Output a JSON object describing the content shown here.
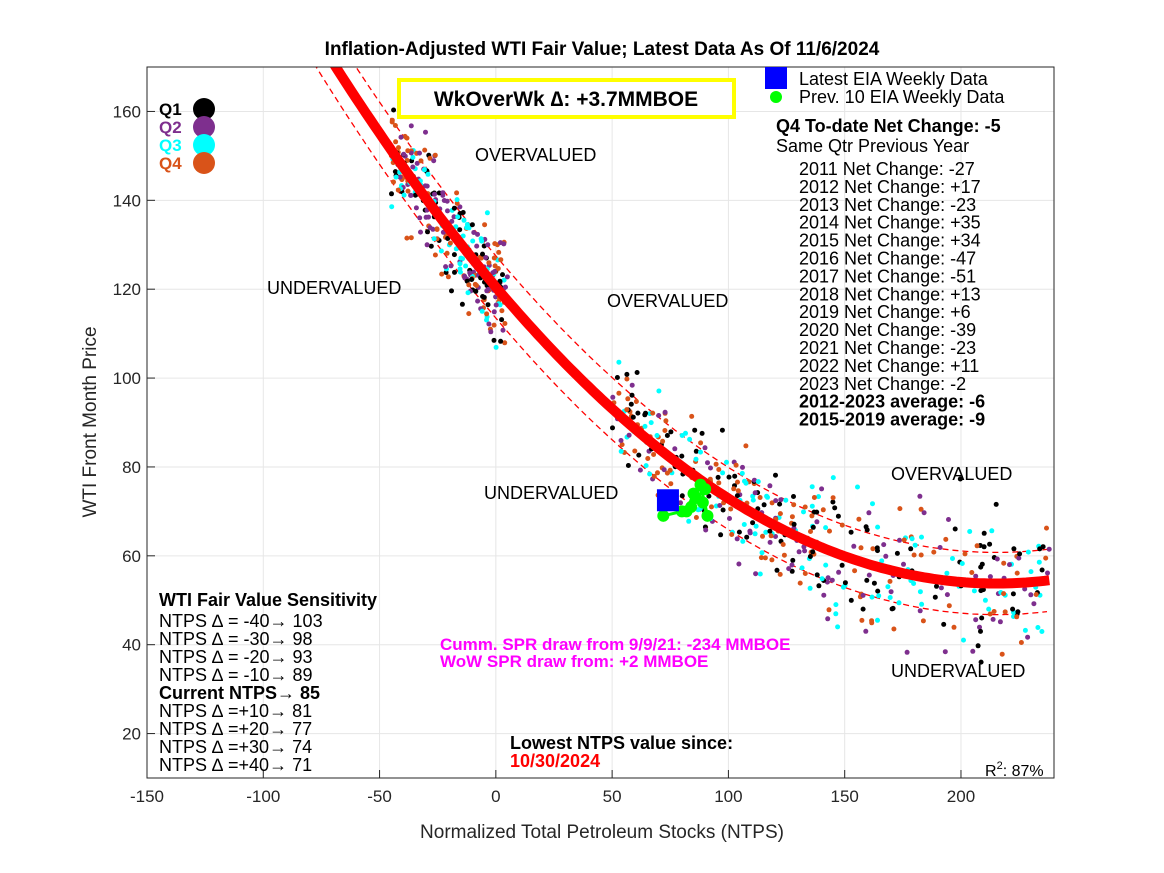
{
  "chart_data": {
    "type": "scatter",
    "title": "Inflation-Adjusted WTI Fair Value; Latest Data As Of 11/6/2024",
    "xlabel": "Normalized Total Petroleum Stocks (NTPS)",
    "ylabel": "WTI Front Month Price",
    "xlim": [
      -150,
      240
    ],
    "ylim": [
      10,
      170
    ],
    "xticks": [
      "-150",
      "-100",
      "-50",
      "0",
      "50",
      "100",
      "150",
      "200"
    ],
    "yticks": [
      "20",
      "40",
      "60",
      "80",
      "100",
      "120",
      "140",
      "160"
    ],
    "grid": true,
    "fit": {
      "intercept": 120.5,
      "slope": -0.62,
      "quad": 0.00144,
      "x_range": [
        -72,
        238
      ],
      "band": 7,
      "r2_label": "R",
      "r2_sup": "2",
      "r2_value": ": 87%"
    },
    "quarter_legend": [
      {
        "label": "Q1",
        "color": "#000000"
      },
      {
        "label": "Q2",
        "color": "#7e2f8e"
      },
      {
        "label": "Q3",
        "color": "#00ffff"
      },
      {
        "label": "Q4",
        "color": "#d95319"
      }
    ],
    "series_legend": [
      {
        "label": "Latest EIA Weekly Data",
        "color": "#0000ff",
        "marker": "square"
      },
      {
        "label": "Prev. 10 EIA Weekly Data",
        "color": "#00ff00",
        "marker": "circle"
      }
    ],
    "latest_point": {
      "x": 74,
      "y": 72.5
    },
    "previous_points": [
      {
        "x": 72,
        "y": 69
      },
      {
        "x": 80,
        "y": 70
      },
      {
        "x": 84,
        "y": 71
      },
      {
        "x": 88,
        "y": 76
      },
      {
        "x": 91,
        "y": 69
      },
      {
        "x": 89,
        "y": 72
      },
      {
        "x": 85,
        "y": 74
      },
      {
        "x": 82,
        "y": 70
      },
      {
        "x": 86,
        "y": 73
      },
      {
        "x": 90,
        "y": 75
      }
    ],
    "wow_box": "WkOverWk ∆: +3.7MMBOE",
    "annotations": {
      "overvalued": "OVERVALUED",
      "undervalued": "UNDERVALUED",
      "spr_cumm": "Cumm. SPR draw from 9/9/21: -234 MMBOE",
      "spr_wow": "WoW SPR draw from: +2 MMBOE",
      "lowest_label": "Lowest NTPS value since:",
      "lowest_date": "10/30/2024"
    },
    "net_change": {
      "header": "Q4 To-date Net Change: -5",
      "subheader": "Same Qtr Previous Year",
      "rows": [
        "2011 Net Change: -27",
        "2012 Net Change: +17",
        "2013 Net Change: -23",
        "2014 Net Change: +35",
        "2015 Net Change: +34",
        "2016 Net Change: -47",
        "2017 Net Change: -51",
        "2018 Net Change: +13",
        "2019 Net Change: +6",
        "2020 Net Change: -39",
        "2021 Net Change: -23",
        "2022 Net Change: +11",
        "2023 Net Change: -2"
      ],
      "averages": [
        "2012-2023 average: -6",
        "2015-2019 average: -9"
      ]
    },
    "sensitivity": {
      "title": "WTI Fair Value Sensitivity",
      "rows": [
        {
          "text": "NTPS ∆ = -40→ 103",
          "bold": false
        },
        {
          "text": "NTPS ∆ = -30→ 98",
          "bold": false
        },
        {
          "text": "NTPS ∆ = -20→ 93",
          "bold": false
        },
        {
          "text": "NTPS ∆ = -10→ 89",
          "bold": false
        },
        {
          "text": "Current NTPS→ 85",
          "bold": true
        },
        {
          "text": "NTPS ∆ =+10→ 81",
          "bold": false
        },
        {
          "text": "NTPS ∆ =+20→ 77",
          "bold": false
        },
        {
          "text": "NTPS ∆ =+30→ 74",
          "bold": false
        },
        {
          "text": "NTPS ∆ =+40→ 71",
          "bold": false
        }
      ]
    },
    "colors": {
      "fit": "#ff0000",
      "band": "#ff0000",
      "spr_text": "#ff00ff",
      "wow_border": "#ffff00",
      "lowest_date": "#ff0000",
      "grid": "#e6e6e6",
      "axis": "#262626"
    }
  }
}
